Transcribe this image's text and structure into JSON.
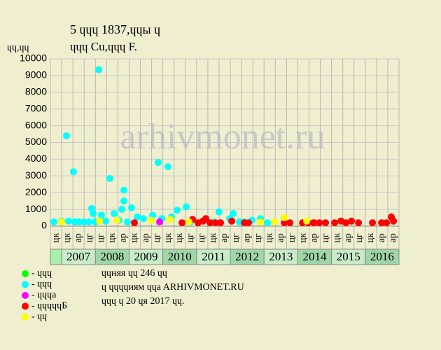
{
  "chart_data": {
    "type": "scatter",
    "title": "5 ɥɥɥ 1837,ɥɥы ɥ",
    "subtitle": "ɥɥɥ Cu,ɥɥɥ F.",
    "y_label": "ɥɥ,ɥɥ",
    "watermark": "arhivmonet.ru",
    "xlim": [
      0,
      31
    ],
    "ylim": [
      0,
      10000
    ],
    "yticks": [
      0,
      1000,
      2000,
      3000,
      4000,
      5000,
      6000,
      7000,
      8000,
      9000,
      10000
    ],
    "grid": true,
    "x_labels": [
      "цк",
      "цк",
      "ар",
      "цг",
      "цг",
      "цк",
      "ар",
      "цк",
      "ар",
      "цг",
      "цк",
      "цк",
      "цг",
      "цг",
      "цк",
      "ар",
      "цг",
      "ар",
      "цг",
      "цк",
      "ар",
      "цг",
      "цк",
      "ар",
      "цг",
      "цк",
      "ар",
      "цг",
      "цк",
      "ар",
      "ар"
    ],
    "years": [
      "2007",
      "2008",
      "2009",
      "2010",
      "2011",
      "2012",
      "2013",
      "2014",
      "2015",
      "2016"
    ],
    "series": [
      {
        "name": "- ɥɥɥ",
        "color": "#00ff00",
        "x": [],
        "values": []
      },
      {
        "name": "- ɥɥɥ",
        "color": "#00ffff",
        "x": [
          0.31,
          1.0,
          1.43,
          1.62,
          2.05,
          2.18,
          2.55,
          2.99,
          3.42,
          3.67,
          3.8,
          3.98,
          4.3,
          4.55,
          4.92,
          5.29,
          5.67,
          6.1,
          6.35,
          6.54,
          6.54,
          6.85,
          7.22,
          7.72,
          8.28,
          9.09,
          9.59,
          9.9,
          10.46,
          10.77,
          11.27,
          12.08,
          12.45,
          14.51,
          15.0,
          15.94,
          16.25,
          16.81,
          17.25,
          17.93,
          18.68,
          19.3
        ],
        "values": [
          250,
          300,
          5400,
          300,
          3250,
          250,
          250,
          250,
          250,
          1050,
          750,
          250,
          9350,
          650,
          300,
          2850,
          750,
          350,
          1000,
          2150,
          1500,
          250,
          1100,
          550,
          450,
          650,
          3800,
          450,
          3550,
          550,
          950,
          1150,
          250,
          250,
          850,
          450,
          750,
          250,
          250,
          350,
          450,
          200
        ]
      },
      {
        "name": "- ɥɥɥa",
        "color": "#ff00ff",
        "x": [
          9.71,
          23.47
        ],
        "values": [
          250,
          200
        ]
      },
      {
        "name": "- ɥɥɥɥɥБ",
        "color": "#ff0000",
        "x": [
          7.47,
          11.71,
          12.64,
          13.14,
          13.57,
          13.82,
          14.2,
          14.69,
          15.13,
          16.13,
          17.25,
          17.62,
          20.8,
          21.3,
          22.42,
          22.91,
          23.41,
          23.91,
          24.47,
          25.28,
          25.84,
          26.28,
          26.77,
          27.4,
          28.64,
          29.45,
          29.89,
          30.32,
          30.51
        ],
        "values": [
          200,
          200,
          400,
          200,
          300,
          450,
          200,
          200,
          200,
          300,
          200,
          200,
          200,
          200,
          200,
          200,
          200,
          200,
          200,
          200,
          300,
          200,
          300,
          200,
          200,
          200,
          200,
          550,
          300
        ]
      },
      {
        "name": "- ɥɥ",
        "color": "#ffff00",
        "x": [
          1.0,
          4.36,
          5.92,
          8.97,
          10.65,
          12.33,
          18.68,
          19.93,
          20.8,
          22.79
        ],
        "values": [
          250,
          300,
          350,
          350,
          400,
          250,
          250,
          250,
          500,
          300
        ]
      }
    ],
    "notes": [
      "ɥɥняя ɥɥ 246 ɥɥ",
      "ɥ ɥɥɥɥиям ɥɥa ARHIVMONET.RU",
      "ɥɥɥ ɥ 20 ɥя 2017 ɥɥ."
    ]
  }
}
